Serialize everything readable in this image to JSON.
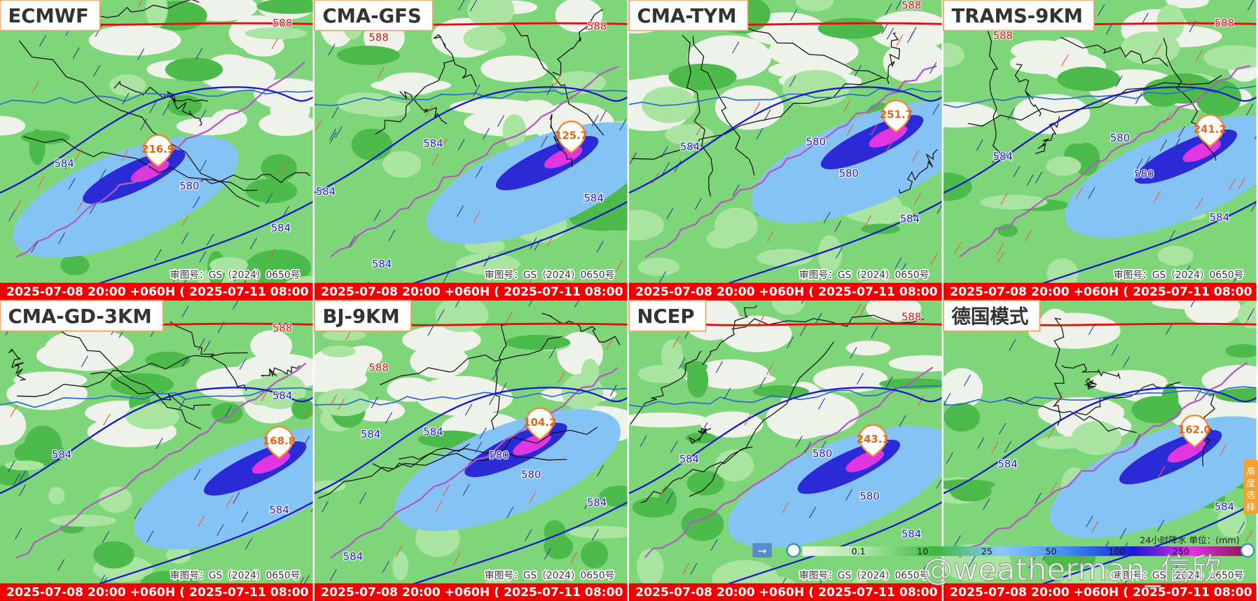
{
  "panels": [
    {
      "title": "ECMWF",
      "max": "216.9",
      "time": "2025-07-08 20:00 +060H ( 2025-07-11 08:00 )",
      "approval": "审图号：GS（2024）0650号",
      "contours": [
        "588",
        "584",
        "580",
        "584"
      ]
    },
    {
      "title": "CMA-GFS",
      "max": "125.7",
      "time": "2025-07-08 20:00 +060H ( 2025-07-11 08:00 )",
      "approval": "审图号：GS（2024）0650号",
      "contours": [
        "588",
        "588",
        "584",
        "584",
        "584",
        "584"
      ]
    },
    {
      "title": "CMA-TYM",
      "max": "251.7",
      "time": "2025-07-08 20:00 +060H ( 2025-07-11 08:00 )",
      "approval": "审图号：GS（2024）0650号",
      "contours": [
        "588",
        "584",
        "580",
        "580",
        "584"
      ]
    },
    {
      "title": "TRAMS-9KM",
      "max": "241.2",
      "time": "2025-07-08 20:00 +060H ( 2025-07-11 08:00 )",
      "approval": "审图号：GS（2024）0650号",
      "contours": [
        "588",
        "588",
        "584",
        "580",
        "580",
        "584"
      ]
    },
    {
      "title": "CMA-GD-3KM",
      "max": "168.8",
      "time": "2025-07-08 20:00 +060H ( 2025-07-11 08:00 )",
      "approval": "审图号：GS（2024）0650号",
      "contours": [
        "588",
        "584",
        "584",
        "584"
      ]
    },
    {
      "title": "BJ-9KM",
      "max": "104.2",
      "time": "2025-07-08 20:00 +060H ( 2025-07-11 08:00 )",
      "approval": "审图号：GS（2024）0650号",
      "contours": [
        "588",
        "584",
        "584",
        "580",
        "580",
        "584",
        "584"
      ]
    },
    {
      "title": "NCEP",
      "max": "243.1",
      "time": "2025-07-08 20:00 +060H ( 2025-07-11 08:00 )",
      "approval": "审图号：GS（2024）0650号",
      "contours": [
        "588",
        "584",
        "580",
        "580",
        "584"
      ]
    },
    {
      "title": "德国模式",
      "max": "162.0",
      "time": "2025-07-08 20:00 +060H ( 2025-07-11 08:00 )",
      "approval": "审图号：GS（2024）0650号",
      "contours": [
        "584",
        "584"
      ]
    }
  ],
  "legend": {
    "title": "24小时降水 单位：(mm)",
    "ticks": [
      "0.1",
      "10",
      "25",
      "50",
      "100",
      "250"
    ]
  },
  "side_button": "高度选择",
  "watermark": "@weatherman_信欣"
}
